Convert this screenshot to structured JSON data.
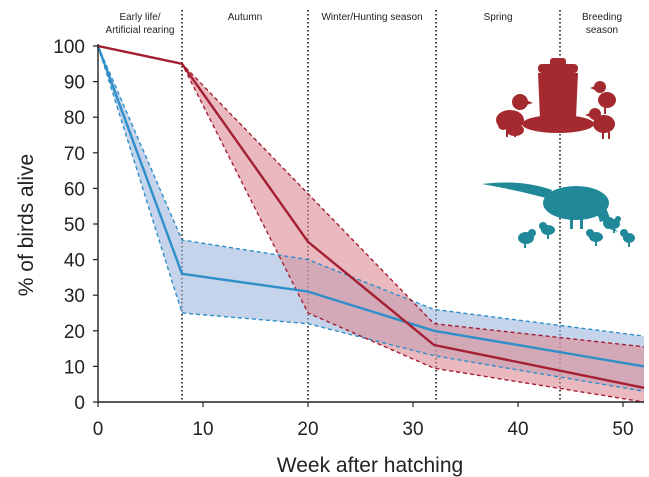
{
  "chart_data": {
    "type": "line",
    "title": "",
    "xlabel": "Week after hatching",
    "ylabel": "% of birds alive",
    "xlim": [
      0,
      52
    ],
    "ylim": [
      0,
      100
    ],
    "xticks": [
      0,
      10,
      20,
      30,
      40,
      50
    ],
    "yticks": [
      0,
      10,
      20,
      30,
      40,
      50,
      60,
      70,
      80,
      90,
      100
    ],
    "grid": false,
    "legend": "none",
    "season_boundaries": [
      8,
      20,
      32.2,
      44
    ],
    "seasons": [
      {
        "label_lines": [
          "Early life/",
          "Artificial rearing"
        ],
        "x_from": 0,
        "x_to": 8
      },
      {
        "label_lines": [
          "Autumn"
        ],
        "x_from": 8,
        "x_to": 20
      },
      {
        "label_lines": [
          "Winter/Hunting  season"
        ],
        "x_from": 20,
        "x_to": 32.2
      },
      {
        "label_lines": [
          "Spring"
        ],
        "x_from": 32.2,
        "x_to": 44
      },
      {
        "label_lines": [
          "Breeding",
          "season"
        ],
        "x_from": 44,
        "x_to": 52
      }
    ],
    "series": [
      {
        "color": "#2e8fc9",
        "band_fill": "#9fb7dd",
        "mean": {
          "x": [
            0,
            8,
            20,
            32,
            52
          ],
          "y": [
            100,
            36,
            31,
            20,
            10
          ]
        },
        "upper": {
          "x": [
            0,
            8,
            20,
            32,
            52
          ],
          "y": [
            100,
            45.5,
            40,
            26,
            18.5
          ]
        },
        "lower": {
          "x": [
            0,
            8,
            20,
            32,
            52
          ],
          "y": [
            100,
            25,
            22,
            13,
            3
          ]
        }
      },
      {
        "color": "#a51f33",
        "band_fill": "#dc8a95",
        "mean": {
          "x": [
            0,
            8,
            20,
            32,
            52
          ],
          "y": [
            100,
            95,
            45,
            16,
            4
          ]
        },
        "upper": {
          "x": [
            0,
            8,
            32,
            52
          ],
          "y": [
            100,
            95,
            22,
            15.5
          ]
        },
        "lower": {
          "x": [
            0,
            8,
            20,
            32,
            52
          ],
          "y": [
            100,
            95,
            25,
            9.5,
            0
          ]
        }
      }
    ],
    "icons": [
      {
        "name": "pheasant-chicks-feeder-icon",
        "color": "#a52a2f"
      },
      {
        "name": "wild-pheasant-hen-chicks-icon",
        "color": "#21889a"
      }
    ]
  }
}
